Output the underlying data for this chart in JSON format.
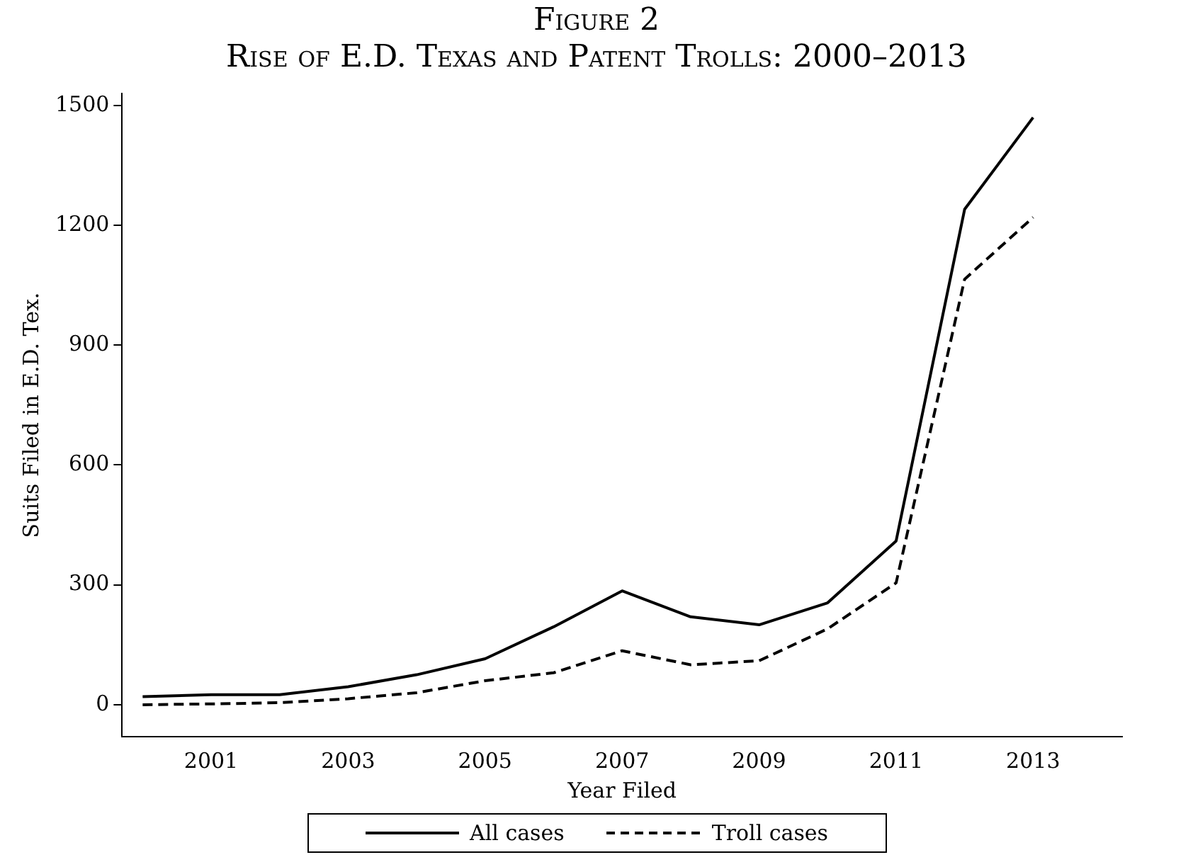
{
  "chart_data": {
    "type": "line",
    "title": "Figure 2",
    "subtitle": "Rise of E.D. Texas and Patent Trolls: 2000–2013",
    "xlabel": "Year Filed",
    "ylabel": "Suits Filed in E.D. Tex.",
    "x": [
      2000,
      2001,
      2002,
      2003,
      2004,
      2005,
      2006,
      2007,
      2008,
      2009,
      2010,
      2011,
      2012,
      2013
    ],
    "series": [
      {
        "name": "All cases",
        "color": "#000000",
        "line_style": "solid",
        "values": [
          20,
          25,
          25,
          45,
          75,
          115,
          195,
          285,
          220,
          200,
          255,
          410,
          1240,
          1470
        ]
      },
      {
        "name": "Troll cases",
        "color": "#000000",
        "line_style": "dashed",
        "values": [
          0,
          2,
          5,
          15,
          30,
          60,
          80,
          135,
          100,
          110,
          190,
          305,
          1065,
          1220
        ]
      }
    ],
    "xlim": [
      1999.7,
      2014.3
    ],
    "xticks": [
      2001,
      2003,
      2005,
      2007,
      2009,
      2011,
      2013
    ],
    "ylim": [
      -80,
      1530
    ],
    "yticks": [
      0,
      300,
      600,
      900,
      1200,
      1500
    ],
    "grid": false,
    "legend": "bottom",
    "marker": "none"
  }
}
